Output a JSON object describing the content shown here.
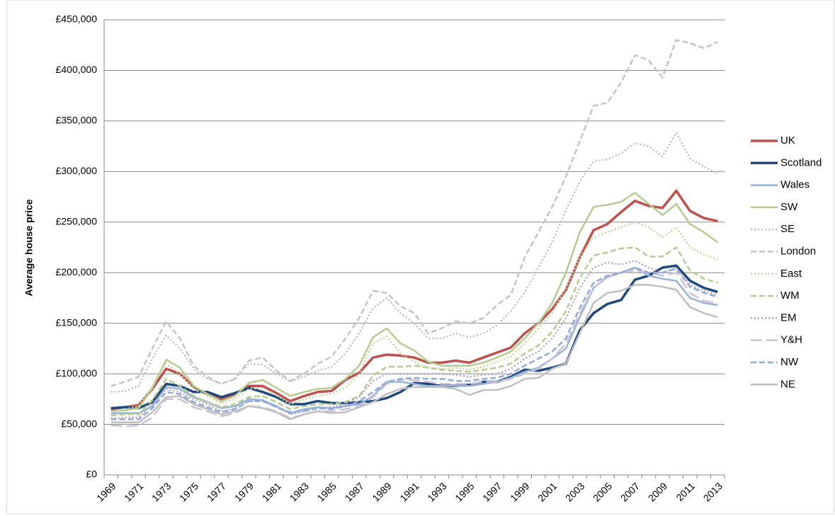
{
  "chart_data": {
    "type": "line",
    "y_label": "Average house price",
    "categories": [
      "1969",
      null,
      "1971",
      null,
      "1973",
      null,
      "1975",
      null,
      "1977",
      null,
      "1979",
      null,
      "1981",
      null,
      "1983",
      null,
      "1985",
      null,
      "1987",
      null,
      "1989",
      null,
      "1991",
      null,
      "1993",
      null,
      "1995",
      null,
      "1997",
      null,
      "1999",
      null,
      "2001",
      null,
      "2003",
      null,
      "2005",
      null,
      "2007",
      null,
      "2009",
      null,
      "2011",
      null,
      "2013"
    ],
    "ylim": [
      0,
      450000
    ],
    "yticks": [
      {
        "value": 0,
        "label": "£0"
      },
      {
        "value": 50000,
        "label": "£50,000"
      },
      {
        "value": 100000,
        "label": "£100,000"
      },
      {
        "value": 150000,
        "label": "£150,000"
      },
      {
        "value": 200000,
        "label": "£200,000"
      },
      {
        "value": 250000,
        "label": "£250,000"
      },
      {
        "value": 300000,
        "label": "£300,000"
      },
      {
        "value": 350000,
        "label": "£350,000"
      },
      {
        "value": 400000,
        "label": "£400,000"
      },
      {
        "value": 450000,
        "label": "£450,000"
      }
    ],
    "grid": true,
    "legend": "right",
    "series": [
      {
        "name": "UK",
        "color": "#c0504d",
        "dash": "solid",
        "width": 3.5,
        "values": [
          65000,
          67000,
          69000,
          85000,
          105000,
          100000,
          87000,
          80000,
          75000,
          80000,
          88000,
          88000,
          81000,
          73000,
          78000,
          82000,
          83000,
          94000,
          101000,
          116000,
          119000,
          118000,
          116000,
          111000,
          111000,
          113000,
          111000,
          116000,
          121000,
          126000,
          140000,
          150000,
          164000,
          183000,
          215000,
          242000,
          248000,
          260000,
          271000,
          266000,
          264000,
          281000,
          261000,
          254000,
          251000
        ]
      },
      {
        "name": "Scotland",
        "color": "#1f497d",
        "dash": "solid",
        "width": 3.5,
        "values": [
          66000,
          67000,
          66000,
          72000,
          90000,
          88000,
          82000,
          82000,
          77000,
          81000,
          86000,
          82000,
          77000,
          70000,
          70000,
          73000,
          71000,
          71000,
          72000,
          73000,
          76000,
          82000,
          91000,
          90000,
          88000,
          88000,
          89000,
          92000,
          92000,
          97000,
          104000,
          103000,
          106000,
          110000,
          143000,
          160000,
          169000,
          173000,
          193000,
          197000,
          205000,
          207000,
          192000,
          185000,
          181000
        ]
      },
      {
        "name": "Wales",
        "color": "#95b3d7",
        "dash": "solid",
        "width": 2.5,
        "values": [
          61000,
          61000,
          61000,
          68000,
          87000,
          85000,
          77000,
          72000,
          66000,
          68000,
          75000,
          74000,
          68000,
          61000,
          65000,
          67000,
          66000,
          68000,
          70000,
          78000,
          92000,
          92000,
          90000,
          88000,
          88000,
          88000,
          88000,
          90000,
          92000,
          96000,
          102000,
          106000,
          115000,
          125000,
          156000,
          185000,
          196000,
          200000,
          205000,
          197000,
          194000,
          192000,
          175000,
          170000,
          168000
        ]
      },
      {
        "name": "SW",
        "color": "#b5cc8e",
        "dash": "solid",
        "width": 2.5,
        "values": [
          63000,
          64000,
          66000,
          86000,
          114000,
          106000,
          88000,
          80000,
          73000,
          78000,
          91000,
          94000,
          86000,
          78000,
          82000,
          85000,
          86000,
          95000,
          108000,
          136000,
          145000,
          130000,
          123000,
          112000,
          108000,
          108000,
          108000,
          111000,
          116000,
          122000,
          135000,
          150000,
          170000,
          200000,
          240000,
          265000,
          267000,
          270000,
          279000,
          268000,
          257000,
          268000,
          248000,
          240000,
          230000
        ]
      },
      {
        "name": "SE",
        "color": "#bfbfbf",
        "dash": "dotted",
        "width": 2.5,
        "values": [
          82000,
          83000,
          88000,
          115000,
          138000,
          125000,
          105000,
          95000,
          90000,
          95000,
          110000,
          109000,
          100000,
          92000,
          97000,
          103000,
          107000,
          120000,
          140000,
          165000,
          175000,
          160000,
          150000,
          135000,
          135000,
          140000,
          136000,
          140000,
          148000,
          162000,
          180000,
          205000,
          230000,
          262000,
          290000,
          310000,
          312000,
          318000,
          328000,
          325000,
          315000,
          338000,
          313000,
          305000,
          298000
        ]
      },
      {
        "name": "London",
        "color": "#c4c4c4",
        "dash": "dashed",
        "width": 2.5,
        "values": [
          88000,
          92000,
          97000,
          125000,
          152000,
          135000,
          108000,
          97000,
          90000,
          95000,
          113000,
          116000,
          103000,
          93000,
          100000,
          110000,
          117000,
          135000,
          155000,
          182000,
          180000,
          167000,
          160000,
          140000,
          145000,
          152000,
          150000,
          155000,
          168000,
          178000,
          215000,
          240000,
          265000,
          295000,
          330000,
          365000,
          368000,
          388000,
          415000,
          410000,
          393000,
          430000,
          427000,
          422000,
          428000
        ]
      },
      {
        "name": "East",
        "color": "#c3d69b",
        "dash": "dotted",
        "width": 2.5,
        "values": [
          63000,
          65000,
          68000,
          88000,
          110000,
          100000,
          85000,
          78000,
          71000,
          75000,
          85000,
          86000,
          79000,
          70000,
          75000,
          78000,
          80000,
          86000,
          100000,
          130000,
          137000,
          120000,
          112000,
          106000,
          105000,
          106000,
          104000,
          107000,
          112000,
          117000,
          130000,
          145000,
          160000,
          185000,
          215000,
          235000,
          240000,
          245000,
          250000,
          245000,
          235000,
          245000,
          225000,
          218000,
          213000
        ]
      },
      {
        "name": "WM",
        "color": "#b5cc8e",
        "dash": "dashed",
        "width": 2.5,
        "values": [
          59000,
          60000,
          60000,
          74000,
          95000,
          88000,
          78000,
          72000,
          67000,
          70000,
          77000,
          78000,
          72000,
          65000,
          68000,
          70000,
          70000,
          72000,
          78000,
          98000,
          107000,
          107000,
          108000,
          106000,
          104000,
          103000,
          102000,
          104000,
          106000,
          110000,
          120000,
          128000,
          142000,
          162000,
          195000,
          217000,
          220000,
          224000,
          225000,
          216000,
          216000,
          225000,
          202000,
          194000,
          190000
        ]
      },
      {
        "name": "EM",
        "color": "#b3a2c7",
        "dash": "dotted",
        "width": 2.5,
        "values": [
          56000,
          57000,
          57000,
          70000,
          85000,
          82000,
          75000,
          70000,
          63000,
          66000,
          73000,
          73000,
          67000,
          60000,
          63000,
          66000,
          67000,
          70000,
          77000,
          93000,
          100000,
          100000,
          100000,
          100000,
          100000,
          99000,
          97000,
          99000,
          100000,
          105000,
          115000,
          122000,
          135000,
          155000,
          185000,
          205000,
          210000,
          208000,
          212000,
          205000,
          200000,
          205000,
          188000,
          182000,
          178000
        ]
      },
      {
        "name": "Y&H",
        "color": "#ccc0da",
        "dash": "longdash",
        "width": 2.5,
        "values": [
          49000,
          48000,
          49000,
          57000,
          75000,
          75000,
          67000,
          63000,
          58000,
          61000,
          68000,
          67000,
          63000,
          56000,
          60000,
          63000,
          63000,
          65000,
          68000,
          77000,
          90000,
          94000,
          94000,
          92000,
          90000,
          90000,
          90000,
          92000,
          92000,
          95000,
          100000,
          105000,
          115000,
          130000,
          160000,
          185000,
          195000,
          200000,
          202000,
          200000,
          197000,
          200000,
          180000,
          172000,
          170000
        ]
      },
      {
        "name": "NW",
        "color": "#8eaadb",
        "dash": "dashed",
        "width": 2.5,
        "values": [
          55000,
          55000,
          55000,
          66000,
          82000,
          80000,
          72000,
          67000,
          62000,
          65000,
          73000,
          73000,
          67000,
          62000,
          63000,
          66000,
          65000,
          68000,
          73000,
          82000,
          92000,
          95000,
          96000,
          95000,
          95000,
          93000,
          93000,
          95000,
          96000,
          100000,
          108000,
          115000,
          122000,
          135000,
          165000,
          190000,
          197000,
          200000,
          205000,
          200000,
          200000,
          204000,
          186000,
          180000,
          176000
        ]
      },
      {
        "name": "NE",
        "color": "#bfbfbf",
        "dash": "solid",
        "width": 2.5,
        "values": [
          52000,
          52000,
          52000,
          62000,
          77000,
          78000,
          70000,
          65000,
          60000,
          63000,
          68000,
          66000,
          62000,
          55000,
          60000,
          63000,
          61000,
          62000,
          67000,
          72000,
          80000,
          85000,
          87000,
          87000,
          87000,
          85000,
          79000,
          84000,
          84000,
          88000,
          95000,
          96000,
          105000,
          110000,
          140000,
          170000,
          180000,
          182000,
          188000,
          188000,
          186000,
          183000,
          166000,
          160000,
          156000
        ]
      }
    ]
  }
}
